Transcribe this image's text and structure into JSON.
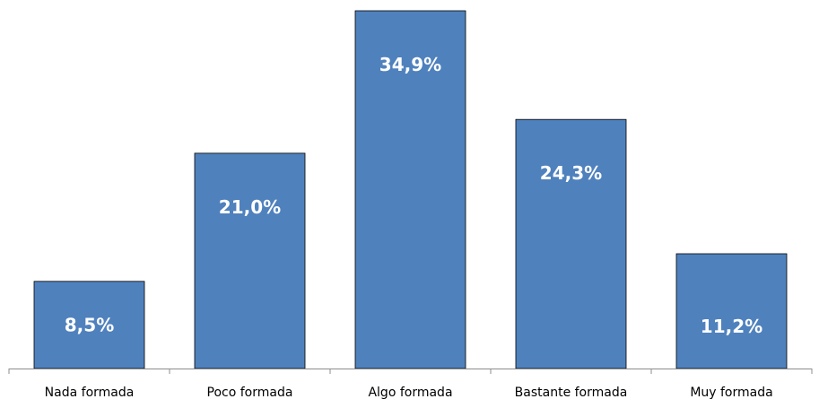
{
  "chart_data": {
    "type": "bar",
    "categories": [
      "Nada formada",
      "Poco formada",
      "Algo formada",
      "Bastante formada",
      "Muy formada"
    ],
    "values": [
      8.5,
      21.0,
      34.9,
      24.3,
      11.2
    ],
    "data_labels": [
      "8,5%",
      "21,0%",
      "34,9%",
      "24,3%",
      "11,2%"
    ],
    "title": "",
    "xlabel": "",
    "ylabel": "",
    "ylim": [
      0,
      34.9
    ],
    "grid": false,
    "legend": "none",
    "bar_color": "#4f81bd",
    "label_color": "#ffffff"
  }
}
